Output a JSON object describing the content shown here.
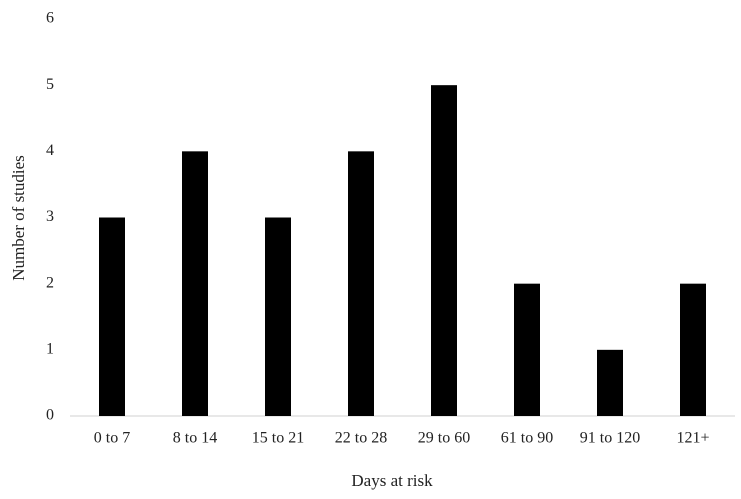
{
  "chart_data": {
    "type": "bar",
    "x_label": "Days at risk",
    "y_label": "Number of studies",
    "categories": [
      "0 to 7",
      "8 to 14",
      "15 to 21",
      "22 to 28",
      "29 to 60",
      "61 to 90",
      "91 to 120",
      "121+"
    ],
    "values": [
      3,
      4,
      3,
      4,
      5,
      2,
      1,
      2
    ],
    "color": "#000000",
    "ylim": [
      0,
      6
    ],
    "yticks": [
      0,
      1,
      2,
      3,
      4,
      5,
      6
    ],
    "grid": false
  }
}
